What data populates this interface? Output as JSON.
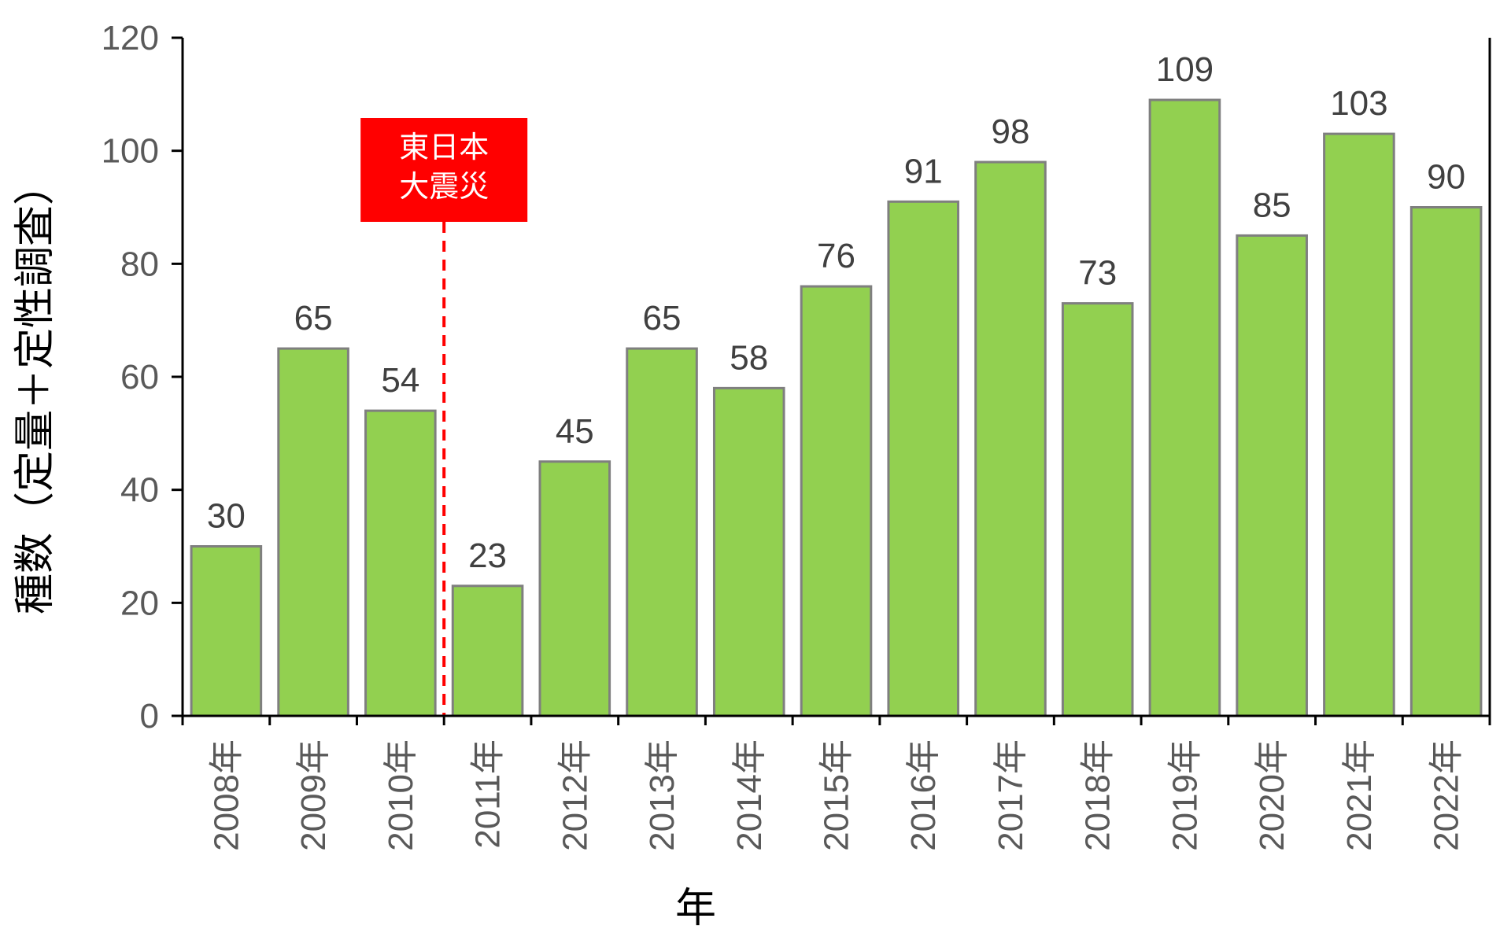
{
  "chart_data": {
    "type": "bar",
    "categories": [
      "2008年",
      "2009年",
      "2010年",
      "2011年",
      "2012年",
      "2013年",
      "2014年",
      "2015年",
      "2016年",
      "2017年",
      "2018年",
      "2019年",
      "2020年",
      "2021年",
      "2022年"
    ],
    "values": [
      30,
      65,
      54,
      23,
      45,
      65,
      58,
      76,
      91,
      98,
      73,
      109,
      85,
      103,
      90
    ],
    "xlabel": "年",
    "ylabel": "種数（定量＋定性調査）",
    "ylim": [
      0,
      120
    ],
    "yticks": [
      0,
      20,
      40,
      60,
      80,
      100,
      120
    ],
    "grid": false,
    "legend": "none",
    "annotation": {
      "lines": [
        "東日本",
        "大震災"
      ],
      "between_categories": [
        "2010年",
        "2011年"
      ],
      "color": "#ff0000"
    },
    "colors": {
      "bar_fill": "#92d050",
      "bar_stroke": "#7f7f7f",
      "axis": "#000000"
    }
  }
}
